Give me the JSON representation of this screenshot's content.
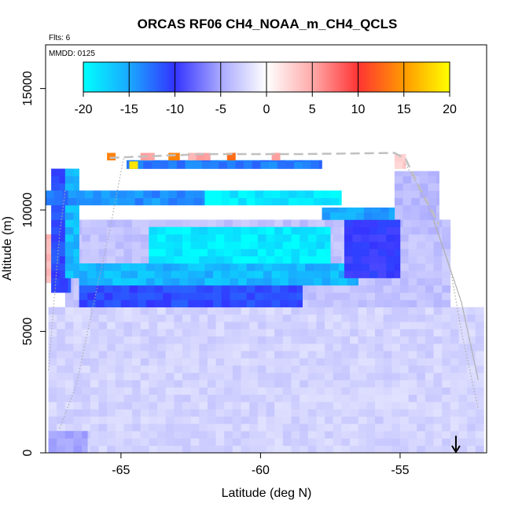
{
  "chart_data": {
    "type": "heatmap",
    "title": "ORCAS RF06 CH4_NOAA_m_CH4_QCLS",
    "flights_note": "Flts: 6",
    "date_note": "MMDD: 0125",
    "xlabel": "Latitude (deg N)",
    "ylabel": "Altitude (m)",
    "xlim": [
      -67.7,
      -51.9
    ],
    "ylim": [
      0,
      16800
    ],
    "x_ticks": [
      -65,
      -60,
      -55
    ],
    "x_tick_labels": [
      "-65",
      "-60",
      "-55"
    ],
    "y_ticks": [
      0,
      5000,
      10000,
      15000
    ],
    "y_tick_labels": [
      "0",
      "5000",
      "10000",
      "15000"
    ],
    "colorbar": {
      "min": -20,
      "max": 20,
      "ticks": [
        -20,
        -15,
        -10,
        -5,
        0,
        5,
        10,
        15,
        20
      ],
      "tick_labels": [
        "-20",
        "-15",
        "-10",
        "-5",
        "0",
        "5",
        "10",
        "15",
        "20"
      ],
      "colors": {
        "cyan": "#00ffff",
        "sky": "#1aa8ff",
        "blue": "#3333ff",
        "white": "#ffffff",
        "red": "#ff3333",
        "orange": "#ff9900",
        "yellow": "#ffff00"
      }
    },
    "cell_size": {
      "lat": 0.3,
      "alt": 300
    },
    "regions": [
      {
        "name": "lower-background",
        "lat": [
          -67.6,
          -52.0
        ],
        "alt": [
          0,
          6000
        ],
        "value": -2.5
      },
      {
        "name": "mid-background",
        "lat": [
          -67.0,
          -53.2
        ],
        "alt": [
          6000,
          9600
        ],
        "value": -3.5
      },
      {
        "name": "upper-background",
        "lat": [
          -55.2,
          -53.6
        ],
        "alt": [
          9000,
          11600
        ],
        "value": -4
      },
      {
        "name": "low-left-band",
        "lat": [
          -67.6,
          -66.2
        ],
        "alt": [
          0,
          900
        ],
        "value": -5
      },
      {
        "name": "left-red-edge",
        "lat": [
          -67.7,
          -67.3
        ],
        "alt": [
          7000,
          9000
        ],
        "value": 4
      },
      {
        "name": "deep-blue-base",
        "lat": [
          -66.5,
          -58.5
        ],
        "alt": [
          6000,
          6900
        ],
        "value": -11
      },
      {
        "name": "sky-layer",
        "lat": [
          -66.5,
          -56.5
        ],
        "alt": [
          6900,
          7800
        ],
        "value": -16
      },
      {
        "name": "cyan-wedge",
        "lat": [
          -64.0,
          -57.5
        ],
        "alt": [
          7800,
          9300
        ],
        "value": -19
      },
      {
        "name": "right-deep-blue",
        "lat": [
          -57.0,
          -55.0
        ],
        "alt": [
          7200,
          9600
        ],
        "value": -10
      },
      {
        "name": "left-vertical-column",
        "lat": [
          -67.5,
          -66.8
        ],
        "alt": [
          6600,
          11700
        ],
        "value": -11
      },
      {
        "name": "left-vertical-inner",
        "lat": [
          -67.0,
          -66.5
        ],
        "alt": [
          7200,
          11700
        ],
        "value": -16
      },
      {
        "name": "band-10500-west",
        "lat": [
          -67.7,
          -66.9
        ],
        "alt": [
          10200,
          10800
        ],
        "value": -13
      },
      {
        "name": "band-10500-mid",
        "lat": [
          -66.9,
          -62.0
        ],
        "alt": [
          10200,
          10800
        ],
        "value": -14
      },
      {
        "name": "band-10500-east",
        "lat": [
          -62.0,
          -57.1
        ],
        "alt": [
          10200,
          10800
        ],
        "value": -19
      },
      {
        "name": "band-11900",
        "lat": [
          -64.8,
          -57.8
        ],
        "alt": [
          11700,
          12050
        ],
        "value": -13
      },
      {
        "name": "band-9800",
        "lat": [
          -57.8,
          -55.2
        ],
        "alt": [
          9600,
          10100
        ],
        "value": -15
      },
      {
        "name": "top-red-a",
        "lat": [
          -64.3,
          -63.8
        ],
        "alt": [
          12050,
          12350
        ],
        "value": 5
      },
      {
        "name": "top-orange-a",
        "lat": [
          -63.3,
          -62.9
        ],
        "alt": [
          12050,
          12350
        ],
        "value": 14
      },
      {
        "name": "top-red-b",
        "lat": [
          -62.6,
          -61.8
        ],
        "alt": [
          12050,
          12350
        ],
        "value": 5
      },
      {
        "name": "top-orange-b",
        "lat": [
          -61.2,
          -60.9
        ],
        "alt": [
          12050,
          12350
        ],
        "value": 13
      },
      {
        "name": "top-red-c",
        "lat": [
          -59.6,
          -59.3
        ],
        "alt": [
          12050,
          12350
        ],
        "value": 6
      },
      {
        "name": "top-orange-c",
        "lat": [
          -65.5,
          -65.2
        ],
        "alt": [
          12050,
          12350
        ],
        "value": 13
      },
      {
        "name": "top-yellow",
        "lat": [
          -64.7,
          -64.4
        ],
        "alt": [
          11700,
          12000
        ],
        "value": 18
      },
      {
        "name": "right-pink",
        "lat": [
          -55.2,
          -54.8
        ],
        "alt": [
          11700,
          12300
        ],
        "value": 3
      }
    ],
    "flight_tracks": [
      {
        "name": "dashed-top-track",
        "style": "dashed",
        "color": "#c0c0c0",
        "points": [
          [
            -65.4,
            12150
          ],
          [
            -62.0,
            12300
          ],
          [
            -58.5,
            12300
          ],
          [
            -55.2,
            12350
          ],
          [
            -54.8,
            12100
          ],
          [
            -54.3,
            10900
          ],
          [
            -53.6,
            9400
          ]
        ]
      },
      {
        "name": "left-dotted-climb",
        "style": "dotted",
        "color": "#aaaaaa",
        "points": [
          [
            -67.2,
            1000
          ],
          [
            -66.6,
            2800
          ],
          [
            -66.1,
            5500
          ],
          [
            -65.4,
            9200
          ],
          [
            -64.9,
            12150
          ]
        ]
      },
      {
        "name": "left-edge-dotted",
        "style": "dotted",
        "color": "#aaaaaa",
        "points": [
          [
            -67.6,
            3400
          ],
          [
            -67.4,
            6200
          ],
          [
            -67.2,
            9000
          ],
          [
            -67.0,
            10800
          ]
        ]
      },
      {
        "name": "right-dotted-descent",
        "style": "dotted",
        "color": "#aaaaaa",
        "points": [
          [
            -54.8,
            11900
          ],
          [
            -54.0,
            10200
          ],
          [
            -53.2,
            7600
          ],
          [
            -52.8,
            5000
          ],
          [
            -52.2,
            1800
          ]
        ]
      },
      {
        "name": "right-edge-solid",
        "style": "solid",
        "color": "#b0b0b0",
        "points": [
          [
            -53.8,
            9600
          ],
          [
            -52.8,
            6200
          ],
          [
            -52.2,
            3000
          ]
        ]
      }
    ],
    "marker": {
      "name": "arrow",
      "lat": -53.0,
      "alt_top": 700,
      "alt_bottom": 0
    }
  }
}
